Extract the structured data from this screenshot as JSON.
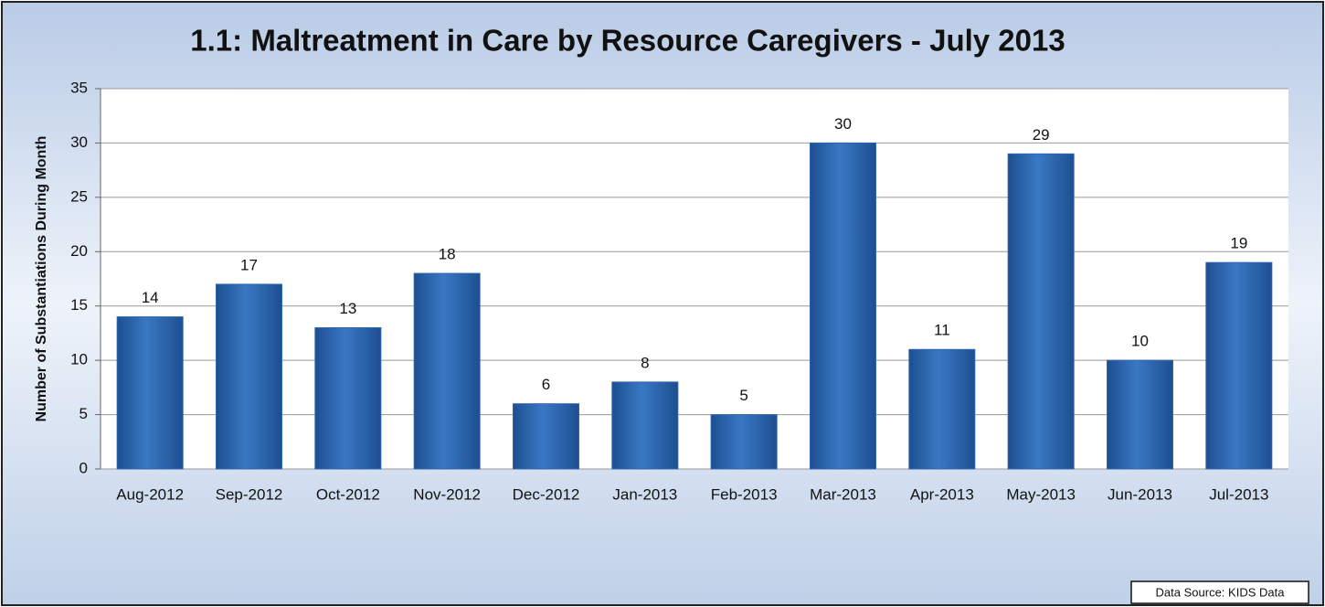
{
  "chart_data": {
    "type": "bar",
    "title": "1.1: Maltreatment in Care by Resource Caregivers - July 2013",
    "y_label": "Number of Substantiations  During Month",
    "categories": [
      "Aug-2012",
      "Sep-2012",
      "Oct-2012",
      "Nov-2012",
      "Dec-2012",
      "Jan-2013",
      "Feb-2013",
      "Mar-2013",
      "Apr-2013",
      "May-2013",
      "Jun-2013",
      "Jul-2013"
    ],
    "values": [
      14,
      17,
      13,
      18,
      6,
      8,
      5,
      30,
      11,
      29,
      10,
      19
    ],
    "color": "#2e66b0",
    "ylim": [
      0,
      35
    ],
    "yticks": [
      0,
      5,
      10,
      15,
      20,
      25,
      30,
      35
    ],
    "grid": true,
    "annotation": "Data Source: KIDS Data"
  }
}
